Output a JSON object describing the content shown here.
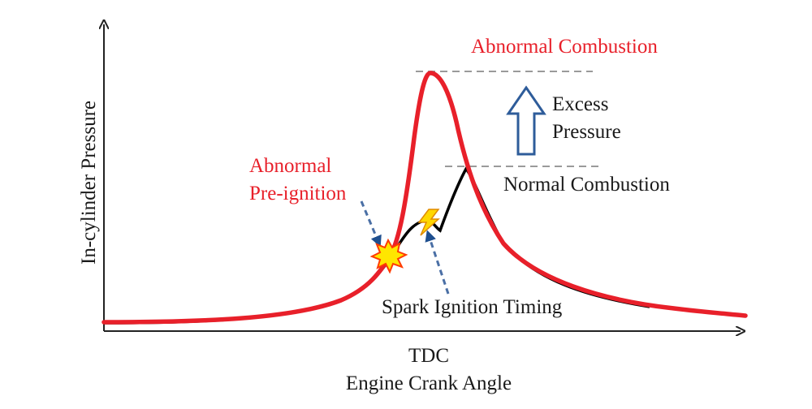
{
  "axes": {
    "y_label": "In-cylinder Pressure",
    "x_label": "Engine Crank Angle",
    "x_marker": "TDC"
  },
  "annotations": {
    "abnormal_combustion": "Abnormal Combustion",
    "excess_line1": "Excess",
    "excess_line2": "Pressure",
    "normal_combustion": "Normal Combustion",
    "preignition_line1": "Abnormal",
    "preignition_line2": "Pre-ignition",
    "spark_timing": "Spark Ignition Timing"
  },
  "colors": {
    "abnormal_curve": "#e8202a",
    "normal_curve": "#000000",
    "arrow_outline": "#2e5c9a",
    "dashed_arrow": "#4a6fa5",
    "guide_line": "#9a9a9a",
    "axis": "#222222",
    "burst_fill": "#ffe600",
    "burst_outline": "#ff3b00"
  },
  "icons": {
    "preignition_marker": "explosion-burst-icon",
    "spark_marker": "lightning-bolt-icon",
    "excess_marker": "hollow-up-arrow-icon"
  }
}
